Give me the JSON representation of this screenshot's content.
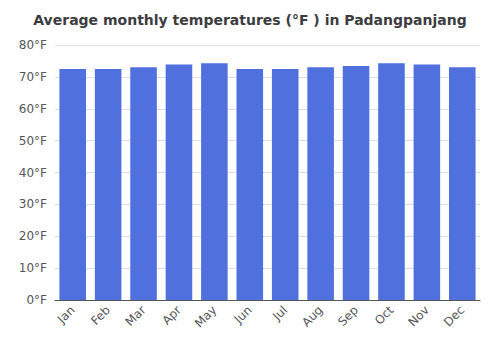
{
  "chart_data": {
    "type": "bar",
    "title": "Average monthly temperatures (°F ) in Padangpanjang",
    "categories": [
      "Jan",
      "Feb",
      "Mar",
      "Apr",
      "May",
      "Jun",
      "Jul",
      "Aug",
      "Sep",
      "Oct",
      "Nov",
      "Dec"
    ],
    "values": [
      72.5,
      72.5,
      73.0,
      73.9,
      74.3,
      72.5,
      72.5,
      73.0,
      73.4,
      74.3,
      73.9,
      73.0
    ],
    "ylim": [
      0,
      80
    ],
    "yticks": [
      {
        "value": 0,
        "label": "0°F"
      },
      {
        "value": 10,
        "label": "10°F"
      },
      {
        "value": 20,
        "label": "20°F"
      },
      {
        "value": 30,
        "label": "30°F"
      },
      {
        "value": 40,
        "label": "40°F"
      },
      {
        "value": 50,
        "label": "50°F"
      },
      {
        "value": 60,
        "label": "60°F"
      },
      {
        "value": 70,
        "label": "70°F"
      },
      {
        "value": 80,
        "label": "80°F"
      }
    ],
    "grid": true
  }
}
